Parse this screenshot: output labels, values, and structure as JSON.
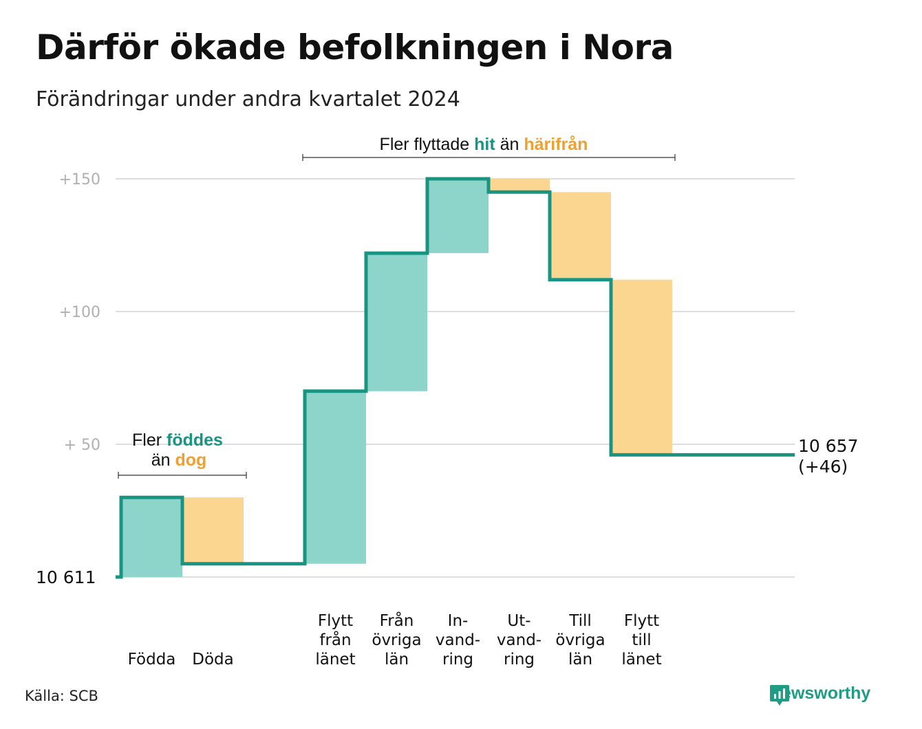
{
  "title": "Därför ökade befolkningen i Nora",
  "subtitle": "Förändringar under andra kvartalet 2024",
  "source": "Källa: SCB",
  "brand": "Newsworthy",
  "colors": {
    "increase": "#8dd4cb",
    "decrease": "#fad690",
    "line": "#1a9482",
    "grid": "#dddddd",
    "teal_text": "#1a9482",
    "orange_text": "#f0a030"
  },
  "annotations": {
    "births": {
      "line1_pre": "Fler ",
      "line1_hl": "föddes",
      "line2_pre": "än ",
      "line2_hl": "dog"
    },
    "migration": {
      "pre": "Fler flyttade ",
      "hl1": "hit",
      "mid": " än ",
      "hl2": "härifrån"
    }
  },
  "chart_data": {
    "type": "waterfall",
    "base_value": 10611,
    "start_label": "10  611",
    "end_label_1": "10 657",
    "end_label_2": "(+46)",
    "end_total": 10657,
    "net_change": 46,
    "y_ticks": [
      {
        "value": 50,
        "label": "+  50"
      },
      {
        "value": 100,
        "label": "+100"
      },
      {
        "value": 150,
        "label": "+150"
      }
    ],
    "ylim": [
      0,
      150
    ],
    "steps": [
      {
        "label": [
          "Födda"
        ],
        "delta": 30
      },
      {
        "label": [
          "Döda"
        ],
        "delta": -25
      },
      {
        "label": [],
        "delta": 0
      },
      {
        "label": [
          "Flytt",
          "från",
          "länet"
        ],
        "delta": 65
      },
      {
        "label": [
          "Från",
          "övriga",
          "län"
        ],
        "delta": 52
      },
      {
        "label": [
          "In-",
          "vand-",
          "ring"
        ],
        "delta": 28
      },
      {
        "label": [
          "Ut-",
          "vand-",
          "ring"
        ],
        "delta": -5
      },
      {
        "label": [
          "Till",
          "övriga",
          "län"
        ],
        "delta": -33
      },
      {
        "label": [
          "Flytt",
          "till",
          "länet"
        ],
        "delta": -66
      }
    ]
  }
}
